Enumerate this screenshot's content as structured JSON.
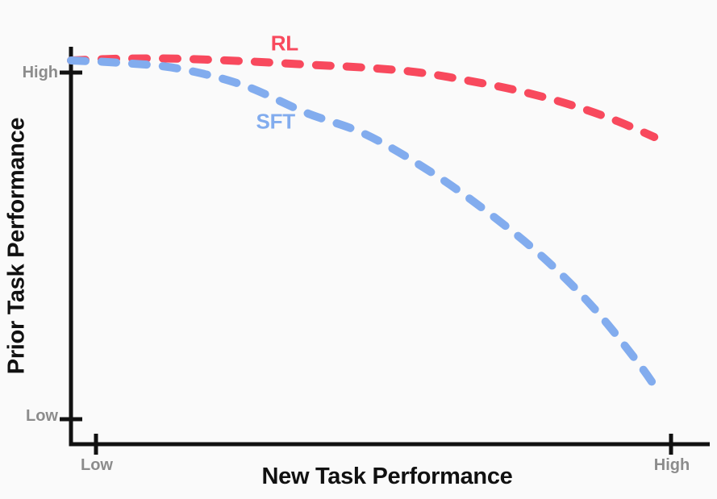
{
  "page": {
    "background": "#FAFAFA"
  },
  "chart_data": {
    "type": "line",
    "title": "",
    "xlabel": "New Task Performance",
    "ylabel": "Prior Task Performance",
    "x_tick_labels": [
      "Low",
      "High"
    ],
    "y_tick_labels": [
      "Low",
      "High"
    ],
    "xlim": [
      0,
      1
    ],
    "ylim": [
      0,
      1
    ],
    "grid": false,
    "legend_position": "inline-annotations",
    "axis_color": "#111111",
    "tick_label_color": "#8C8C8C",
    "series": [
      {
        "name": "RL",
        "color": "#F8495D",
        "line_style": "dashed",
        "line_width": 10,
        "x": [
          0,
          0.083,
          0.177,
          0.285,
          0.392,
          0.492,
          0.581,
          0.661,
          0.742,
          0.823,
          0.903,
          0.972
        ],
        "y": [
          1.035,
          1.04,
          1.04,
          1.033,
          1.023,
          1.014,
          1.0,
          0.977,
          0.949,
          0.912,
          0.865,
          0.814
        ],
        "label_pos": {
          "x": 0.356,
          "y": 1.084
        }
      },
      {
        "name": "SFT",
        "color": "#82ACEE",
        "line_style": "dashed",
        "line_width": 10,
        "x": [
          0,
          0.083,
          0.177,
          0.285,
          0.392,
          0.492,
          0.599,
          0.694,
          0.788,
          0.872,
          0.945,
          0.98
        ],
        "y": [
          1.035,
          1.028,
          1.012,
          0.965,
          0.884,
          0.821,
          0.714,
          0.598,
          0.465,
          0.319,
          0.163,
          0.077
        ],
        "label_pos": {
          "x": 0.341,
          "y": 0.858
        }
      }
    ]
  }
}
